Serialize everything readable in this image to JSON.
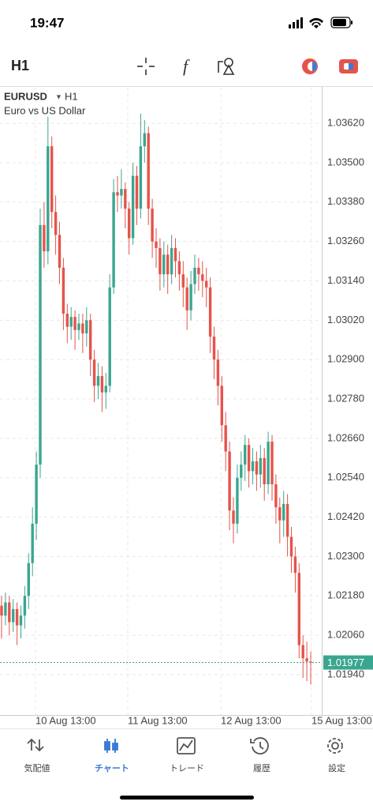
{
  "status_bar": {
    "time": "19:47"
  },
  "toolbar": {
    "timeframe": "H1"
  },
  "chart_data": {
    "type": "candlestick",
    "symbol": "EURUSD",
    "timeframe": "H1",
    "description": "Euro vs US Dollar",
    "up_color": "#3aa68f",
    "down_color": "#e5534b",
    "grid": true,
    "open": [
      1.0215,
      1.0212,
      1.0216,
      1.021,
      1.0214,
      1.0209,
      1.0212,
      1.0218,
      1.0228,
      1.024,
      1.0258,
      1.0331,
      1.0323,
      1.0355,
      1.0335,
      1.0328,
      1.0318,
      1.0304,
      1.03,
      1.0303,
      1.0299,
      1.0301,
      1.0298,
      1.0302,
      1.029,
      1.0282,
      1.0285,
      1.028,
      1.0282,
      1.0312,
      1.0341,
      1.034,
      1.0342,
      1.0336,
      1.0327,
      1.0346,
      1.0336,
      1.0355,
      1.0359,
      1.0336,
      1.0326,
      1.0324,
      1.0316,
      1.0322,
      1.0316,
      1.0324,
      1.032,
      1.0316,
      1.0312,
      1.0305,
      1.0313,
      1.0318,
      1.0316,
      1.0314,
      1.0312,
      1.0297,
      1.029,
      1.0282,
      1.027,
      1.0262,
      1.0244,
      1.024,
      1.0254,
      1.0258,
      1.0264,
      1.0256,
      1.0259,
      1.0255,
      1.026,
      1.0252,
      1.0265,
      1.0252,
      1.0245,
      1.0241,
      1.0246,
      1.0236,
      1.023,
      1.0225,
      1.0203,
      1.0199,
      1.0198
    ],
    "high": [
      1.0218,
      1.0219,
      1.0218,
      1.0217,
      1.0216,
      1.0215,
      1.0221,
      1.0231,
      1.0245,
      1.0262,
      1.0336,
      1.0338,
      1.0364,
      1.0358,
      1.034,
      1.0332,
      1.0321,
      1.0307,
      1.0306,
      1.0305,
      1.0304,
      1.0304,
      1.0306,
      1.0304,
      1.0293,
      1.0289,
      1.0288,
      1.0286,
      1.0316,
      1.0345,
      1.0346,
      1.0348,
      1.0344,
      1.0338,
      1.035,
      1.0349,
      1.0365,
      1.0363,
      1.0361,
      1.0339,
      1.033,
      1.0327,
      1.0326,
      1.0325,
      1.0328,
      1.0327,
      1.0323,
      1.032,
      1.0315,
      1.0317,
      1.0322,
      1.0321,
      1.032,
      1.0318,
      1.0315,
      1.03,
      1.0293,
      1.0285,
      1.0274,
      1.0265,
      1.0248,
      1.0258,
      1.0262,
      1.0267,
      1.0266,
      1.0263,
      1.0262,
      1.0264,
      1.0263,
      1.0268,
      1.0267,
      1.0255,
      1.0248,
      1.025,
      1.0249,
      1.0239,
      1.0233,
      1.0228,
      1.0206,
      1.0204,
      1.0201
    ],
    "low": [
      1.0205,
      1.0209,
      1.0206,
      1.0207,
      1.0203,
      1.0205,
      1.0208,
      1.0214,
      1.0224,
      1.0235,
      1.0254,
      1.0318,
      1.0319,
      1.033,
      1.0322,
      1.0313,
      1.0299,
      1.0295,
      1.0296,
      1.0293,
      1.0296,
      1.0292,
      1.0294,
      1.0285,
      1.0277,
      1.0278,
      1.0274,
      1.0275,
      1.028,
      1.031,
      1.0335,
      1.0336,
      1.033,
      1.0322,
      1.0325,
      1.0331,
      1.0333,
      1.035,
      1.0331,
      1.0321,
      1.0318,
      1.0311,
      1.0312,
      1.031,
      1.0313,
      1.0315,
      1.0311,
      1.0306,
      1.0299,
      1.0302,
      1.031,
      1.0311,
      1.0309,
      1.0306,
      1.0292,
      1.0284,
      1.0276,
      1.0265,
      1.0256,
      1.0238,
      1.0234,
      1.0237,
      1.025,
      1.0253,
      1.0251,
      1.0252,
      1.025,
      1.0251,
      1.0247,
      1.0249,
      1.0247,
      1.024,
      1.0234,
      1.0236,
      1.023,
      1.0225,
      1.0219,
      1.0199,
      1.0193,
      1.0192,
      1.0191
    ],
    "close": [
      1.0212,
      1.0216,
      1.021,
      1.0214,
      1.0209,
      1.0212,
      1.0218,
      1.0228,
      1.024,
      1.0258,
      1.0331,
      1.0323,
      1.0355,
      1.0335,
      1.0328,
      1.0318,
      1.0304,
      1.03,
      1.0303,
      1.0299,
      1.0301,
      1.0298,
      1.0302,
      1.029,
      1.0282,
      1.0285,
      1.028,
      1.0282,
      1.0312,
      1.0341,
      1.034,
      1.0342,
      1.0336,
      1.0327,
      1.0346,
      1.0336,
      1.0355,
      1.0359,
      1.0336,
      1.0326,
      1.0324,
      1.0316,
      1.0322,
      1.0316,
      1.0324,
      1.032,
      1.0316,
      1.0312,
      1.0305,
      1.0313,
      1.0318,
      1.0316,
      1.0314,
      1.0312,
      1.0297,
      1.029,
      1.0282,
      1.027,
      1.0262,
      1.0244,
      1.024,
      1.0254,
      1.0258,
      1.0264,
      1.0256,
      1.0259,
      1.0255,
      1.026,
      1.0252,
      1.0265,
      1.0252,
      1.0245,
      1.0241,
      1.0246,
      1.0236,
      1.023,
      1.0225,
      1.0203,
      1.0199,
      1.0198,
      1.01977
    ],
    "ylim": [
      1.01817,
      1.03731
    ],
    "yticks": [
      {
        "value": 1.0362,
        "label": "1.03620"
      },
      {
        "value": 1.035,
        "label": "1.03500"
      },
      {
        "value": 1.0338,
        "label": "1.03380"
      },
      {
        "value": 1.0326,
        "label": "1.03260"
      },
      {
        "value": 1.0314,
        "label": "1.03140"
      },
      {
        "value": 1.0302,
        "label": "1.03020"
      },
      {
        "value": 1.029,
        "label": "1.02900"
      },
      {
        "value": 1.0278,
        "label": "1.02780"
      },
      {
        "value": 1.0266,
        "label": "1.02660"
      },
      {
        "value": 1.0254,
        "label": "1.02540"
      },
      {
        "value": 1.0242,
        "label": "1.02420"
      },
      {
        "value": 1.023,
        "label": "1.02300"
      },
      {
        "value": 1.0218,
        "label": "1.02180"
      },
      {
        "value": 1.0206,
        "label": "1.02060"
      },
      {
        "value": 1.0194,
        "label": "1.01940"
      }
    ],
    "xticks": [
      "10 Aug 13:00",
      "11 Aug 13:00",
      "12 Aug 13:00",
      "15 Aug 13:00"
    ],
    "current_price": 1.01977,
    "current_price_color": "#3aa68f"
  },
  "tab_bar": {
    "tabs": [
      {
        "label": "気配値",
        "active": false
      },
      {
        "label": "チャート",
        "active": true
      },
      {
        "label": "トレード",
        "active": false
      },
      {
        "label": "履歴",
        "active": false
      },
      {
        "label": "設定",
        "active": false
      }
    ]
  }
}
